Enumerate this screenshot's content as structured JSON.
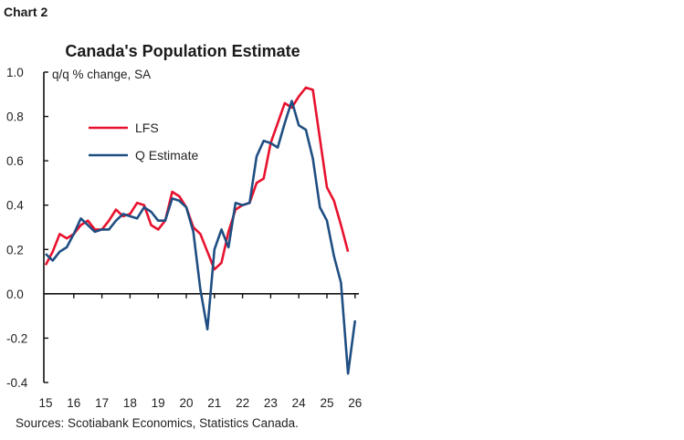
{
  "chart_label": "Chart 2",
  "sources": "Sources: Scotiabank Economics, Statistics Canada.",
  "chart_data": {
    "type": "line",
    "title": "Canada's Population Estimate",
    "ylabel": "q/q % change, SA",
    "xlabel": "",
    "ylim": [
      -0.4,
      1.0
    ],
    "yticks": [
      "1.0",
      "0.8",
      "0.6",
      "0.4",
      "0.2",
      "0.0",
      "-0.2",
      "-0.4"
    ],
    "xticks": [
      "15",
      "16",
      "17",
      "18",
      "19",
      "20",
      "21",
      "22",
      "23",
      "24",
      "25",
      "26"
    ],
    "x_start": "2015Q1",
    "x_frequency": "quarterly",
    "grid": false,
    "legend_position": "top-left",
    "series": [
      {
        "name": "LFS",
        "color": "#e8112d",
        "values": [
          0.13,
          0.19,
          0.27,
          0.25,
          0.27,
          0.31,
          0.33,
          0.29,
          0.29,
          0.33,
          0.38,
          0.35,
          0.36,
          0.41,
          0.4,
          0.31,
          0.29,
          0.33,
          0.46,
          0.44,
          0.39,
          0.3,
          0.27,
          0.19,
          0.11,
          0.14,
          0.28,
          0.38,
          0.4,
          0.41,
          0.5,
          0.52,
          0.68,
          0.77,
          0.86,
          0.84,
          0.89,
          0.93,
          0.92,
          0.7,
          0.48,
          0.42,
          0.31,
          0.19
        ]
      },
      {
        "name": "Q Estimate",
        "color": "#1f4e82",
        "values": [
          0.18,
          0.15,
          0.19,
          0.21,
          0.27,
          0.34,
          0.31,
          0.28,
          0.29,
          0.29,
          0.33,
          0.36,
          0.35,
          0.34,
          0.39,
          0.37,
          0.33,
          0.33,
          0.43,
          0.42,
          0.39,
          0.28,
          0.02,
          -0.16,
          0.2,
          0.29,
          0.21,
          0.41,
          0.4,
          0.41,
          0.62,
          0.69,
          0.68,
          0.66,
          0.77,
          0.87,
          0.76,
          0.74,
          0.61,
          0.39,
          0.33,
          0.17,
          0.05,
          -0.36,
          -0.12
        ]
      }
    ]
  }
}
